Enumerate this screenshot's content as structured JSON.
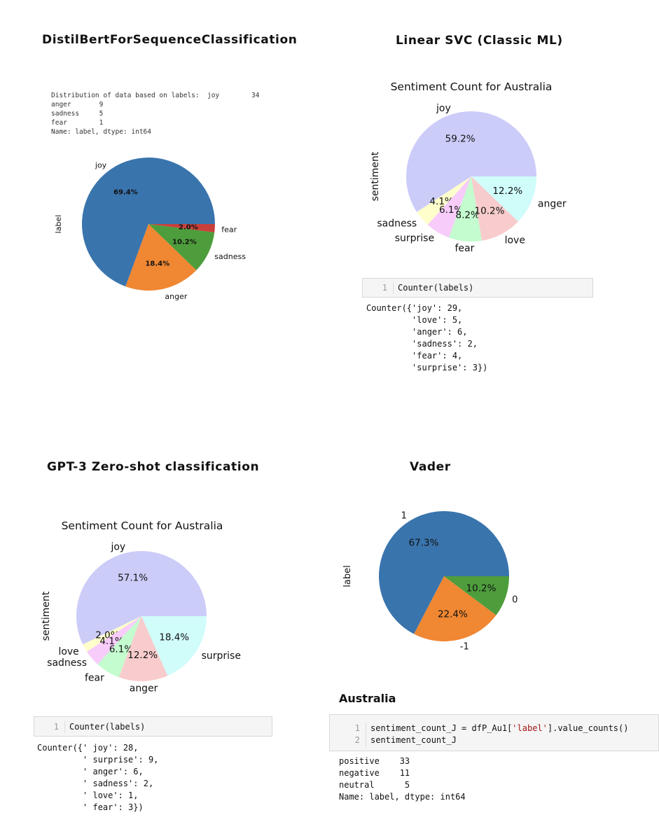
{
  "headings": {
    "distilbert": "DistilBertForSequenceClassification",
    "linear_svc": "Linear SVC (Classic ML)",
    "gpt3": "GPT-3 Zero-shot classification",
    "vader": "Vader",
    "australia": "Australia"
  },
  "distilbert_output": "Distribution of data based on labels:  joy        34\nanger       9\nsadness     5\nfear        1\nName: label, dtype: int64",
  "svc_cell": {
    "line": "1",
    "code": "Counter(labels)"
  },
  "svc_output": "Counter({'joy': 29,\n         'love': 5,\n         'anger': 6,\n         'sadness': 2,\n         'fear': 4,\n         'surprise': 3})",
  "gpt_cell": {
    "line": "1",
    "code": "Counter(labels)"
  },
  "gpt_output": "Counter({' joy': 28,\n         ' surprise': 9,\n         ' anger': 6,\n         ' sadness': 2,\n         ' love': 1,\n         ' fear': 3})",
  "vader_cell": {
    "line1": "1",
    "line2": "2",
    "code1_pre": "sentiment_count_J = dfP_Au1[",
    "code1_str": "'label'",
    "code1_post": "].value_counts()",
    "code2": "sentiment_count_J"
  },
  "vader_output": "positive    33\nnegative    11\nneutral      5\nName: label, dtype: int64",
  "chart_data": [
    {
      "id": "distilbert",
      "type": "pie",
      "title": "",
      "ylabel": "label",
      "slices": [
        {
          "label": "joy",
          "value": 69.4,
          "pct": "69.4%",
          "color": "#3a74ad"
        },
        {
          "label": "anger",
          "value": 18.4,
          "pct": "18.4%",
          "color": "#f08733"
        },
        {
          "label": "sadness",
          "value": 10.2,
          "pct": "10.2%",
          "color": "#4e9d3c"
        },
        {
          "label": "fear",
          "value": 2.0,
          "pct": "2.0%",
          "color": "#c9403a"
        }
      ]
    },
    {
      "id": "svc",
      "type": "pie",
      "title": "Sentiment Count for Australia",
      "ylabel": "sentiment",
      "slices": [
        {
          "label": "joy",
          "value": 59.2,
          "pct": "59.2%",
          "color": "#ccccf9"
        },
        {
          "label": "sadness",
          "value": 4.1,
          "pct": "4.1%",
          "color": "#ffffcc"
        },
        {
          "label": "surprise",
          "value": 6.1,
          "pct": "6.1%",
          "color": "#f7ccfa"
        },
        {
          "label": "fear",
          "value": 8.2,
          "pct": "8.2%",
          "color": "#c4fbcf"
        },
        {
          "label": "love",
          "value": 10.2,
          "pct": "10.2%",
          "color": "#f8cccc"
        },
        {
          "label": "anger",
          "value": 12.2,
          "pct": "12.2%",
          "color": "#d0fcfa"
        }
      ]
    },
    {
      "id": "gpt",
      "type": "pie",
      "title": "Sentiment Count for Australia",
      "ylabel": "sentiment",
      "slices": [
        {
          "label": "joy",
          "value": 57.1,
          "pct": "57.1%",
          "color": "#ccccf9"
        },
        {
          "label": "love",
          "value": 2.0,
          "pct": "2.0%",
          "color": "#ffffcc"
        },
        {
          "label": "sadness",
          "value": 4.1,
          "pct": "4.1%",
          "color": "#f7ccfa"
        },
        {
          "label": "fear",
          "value": 6.1,
          "pct": "6.1%",
          "color": "#c4fbcf"
        },
        {
          "label": "anger",
          "value": 12.2,
          "pct": "12.2%",
          "color": "#f8cccc"
        },
        {
          "label": "surprise",
          "value": 18.4,
          "pct": "18.4%",
          "color": "#d0fcfa"
        }
      ]
    },
    {
      "id": "vader",
      "type": "pie",
      "title": "",
      "ylabel": "label",
      "slices": [
        {
          "label": "1",
          "value": 67.3,
          "pct": "67.3%",
          "color": "#3a74ad"
        },
        {
          "label": "-1",
          "value": 22.4,
          "pct": "22.4%",
          "color": "#f08733"
        },
        {
          "label": "0",
          "value": 10.2,
          "pct": "10.2%",
          "color": "#4e9d3c"
        }
      ]
    }
  ]
}
